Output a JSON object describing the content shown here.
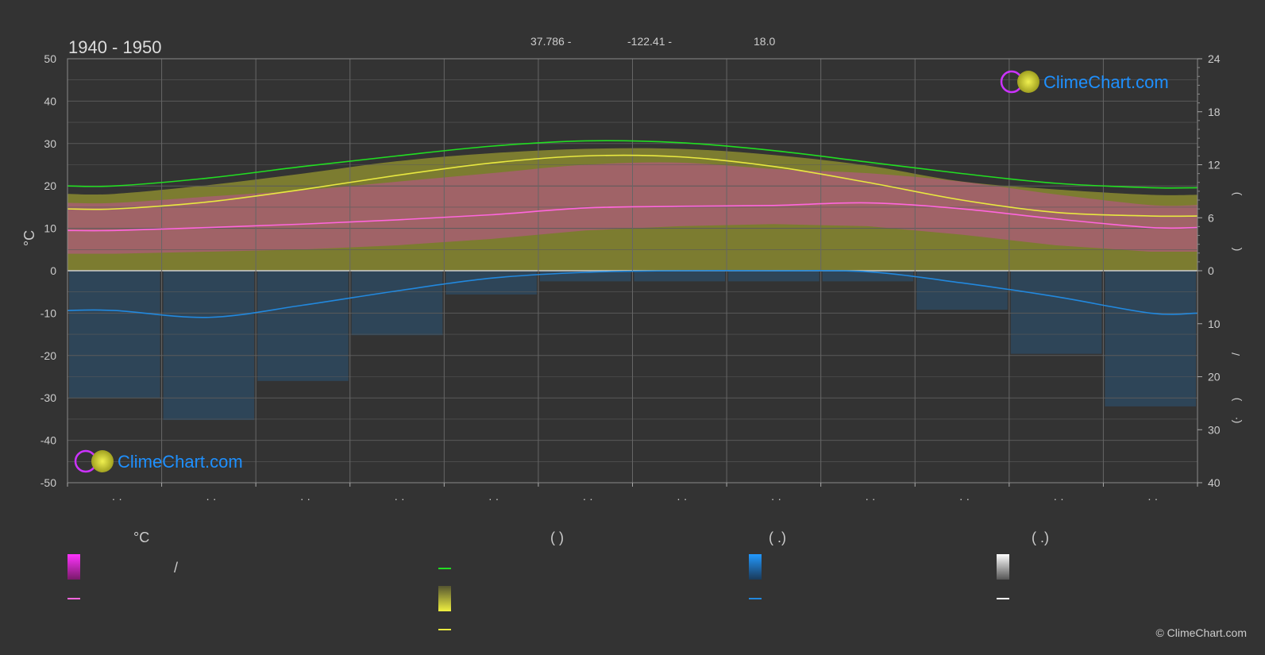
{
  "period": "1940 - 1950",
  "meta": {
    "lat": "37.786 -",
    "lon": "-122.41 -",
    "elevation": "18.0"
  },
  "left_axis": {
    "title": "°C",
    "ticks": [
      "50",
      "40",
      "30",
      "20",
      "10",
      "0",
      "-10",
      "-20",
      "-30",
      "-40",
      "-50"
    ]
  },
  "right_axis": {
    "upper_ticks": [
      "24",
      "18",
      "12",
      "6",
      "0"
    ],
    "lower_ticks": [
      "10",
      "20",
      "30",
      "40"
    ],
    "title_glyphs": [
      ")",
      "(",
      "/",
      ")",
      "·",
      "("
    ]
  },
  "month_labels": [
    "· ·",
    "· ·",
    "· ·",
    "· ·",
    "· ·",
    "· ·",
    "· ·",
    "· ·",
    "· ·",
    "· ·",
    "· ·",
    "· ·"
  ],
  "legend": {
    "col1_header": "°C",
    "col2_header": "(          )",
    "col3_header": "(   .)",
    "col4_header": "(   .)",
    "slash": "/"
  },
  "logo": {
    "text": "ClimeChart.com"
  },
  "copyright": "© ClimeChart.com",
  "colors": {
    "background": "#333333",
    "daylight": "#22dd22",
    "sunshine": "#e8e840",
    "temp_mean": "#ff66dd",
    "temp_range": "#cc44aa",
    "precip": "#2288dd",
    "olive": "#8a8a30",
    "logo": "#1e90ff"
  },
  "chart_data": {
    "type": "line",
    "x_label": "",
    "y_label": "°C",
    "ylim": [
      -50,
      50
    ],
    "right_ylim_hours": [
      0,
      24
    ],
    "right_ylim_precip_mm": [
      0,
      40
    ],
    "months": 12,
    "series": [
      {
        "key": "daylight_hours",
        "color": "#22dd22",
        "values": [
          9.6,
          10.5,
          11.8,
          13.0,
          14.1,
          14.7,
          14.5,
          13.6,
          12.3,
          11.0,
          9.9,
          9.4
        ]
      },
      {
        "key": "sunshine_hours",
        "color": "#e8e840",
        "values": [
          7.0,
          7.8,
          9.2,
          10.8,
          12.2,
          13.0,
          12.9,
          11.8,
          10.0,
          8.0,
          6.6,
          6.2
        ]
      },
      {
        "key": "mean_temp_c",
        "color": "#ff66dd",
        "values": [
          9.5,
          10.2,
          11.0,
          12.0,
          13.2,
          14.8,
          15.2,
          15.4,
          16.0,
          14.6,
          12.2,
          10.2
        ]
      },
      {
        "key": "precip_mm",
        "color": "#2288dd",
        "values": [
          7.5,
          8.8,
          6.5,
          3.8,
          1.4,
          0.3,
          0.0,
          0.0,
          0.2,
          2.3,
          4.9,
          8.0
        ]
      }
    ],
    "bands": {
      "sunshine_band_top_hours": [
        8.7,
        9.7,
        11.0,
        12.4,
        13.3,
        13.8,
        13.8,
        13.1,
        11.9,
        10.1,
        9.2,
        8.6
      ],
      "temp_max_c": [
        16,
        17.5,
        19,
        21,
        23,
        25,
        25.5,
        24,
        23,
        21,
        18,
        15.5
      ],
      "temp_min_c": [
        4,
        4.5,
        5,
        6,
        7.5,
        9.5,
        10.5,
        11,
        10.5,
        8.5,
        6,
        4.5
      ]
    }
  }
}
